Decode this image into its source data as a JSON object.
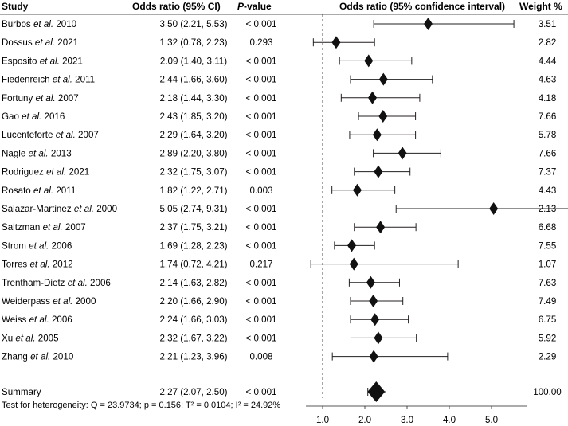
{
  "chart_data": {
    "type": "forest",
    "headers": {
      "study": "Study",
      "or": "Odds ratio (95% CI)",
      "p_value": "P-value",
      "p_value_italic": "P",
      "p_value_rest": "-value",
      "plot": "Odds ratio (95% confidence interval)",
      "weight": "Weight %"
    },
    "studies": [
      {
        "author": "Burbos",
        "etal": "et al.",
        "year": "2010",
        "or": 3.5,
        "lo": 2.21,
        "hi": 5.53,
        "or_text": "3.50 (2.21, 5.53)",
        "p": "< 0.001",
        "weight": "3.51"
      },
      {
        "author": "Dossus",
        "etal": "et al.",
        "year": "2021",
        "or": 1.32,
        "lo": 0.78,
        "hi": 2.23,
        "or_text": "1.32 (0.78, 2.23)",
        "p": "0.293",
        "weight": "2.82"
      },
      {
        "author": "Esposito",
        "etal": "et al.",
        "year": "2021",
        "or": 2.09,
        "lo": 1.4,
        "hi": 3.11,
        "or_text": "2.09 (1.40, 3.11)",
        "p": "< 0.001",
        "weight": "4.44"
      },
      {
        "author": "Fiedenreich",
        "etal": "et al.",
        "year": "2011",
        "or": 2.44,
        "lo": 1.66,
        "hi": 3.6,
        "or_text": "2.44 (1.66, 3.60)",
        "p": "< 0.001",
        "weight": "4.63"
      },
      {
        "author": "Fortuny",
        "etal": "et al.",
        "year": "2007",
        "or": 2.18,
        "lo": 1.44,
        "hi": 3.3,
        "or_text": "2.18 (1.44, 3.30)",
        "p": "< 0.001",
        "weight": "4.18"
      },
      {
        "author": "Gao",
        "etal": "et al.",
        "year": "2016",
        "or": 2.43,
        "lo": 1.85,
        "hi": 3.2,
        "or_text": "2.43 (1.85, 3.20)",
        "p": "< 0.001",
        "weight": "7.66"
      },
      {
        "author": "Lucenteforte",
        "etal": "et al.",
        "year": "2007",
        "or": 2.29,
        "lo": 1.64,
        "hi": 3.2,
        "or_text": "2.29 (1.64, 3.20)",
        "p": "< 0.001",
        "weight": "5.78"
      },
      {
        "author": "Nagle",
        "etal": "et al.",
        "year": "2013",
        "or": 2.89,
        "lo": 2.2,
        "hi": 3.8,
        "or_text": "2.89 (2.20, 3.80)",
        "p": "< 0.001",
        "weight": "7.66"
      },
      {
        "author": "Rodriguez",
        "etal": "et al.",
        "year": "2021",
        "or": 2.32,
        "lo": 1.75,
        "hi": 3.07,
        "or_text": "2.32 (1.75, 3.07)",
        "p": "< 0.001",
        "weight": "7.37"
      },
      {
        "author": "Rosato",
        "etal": "et al.",
        "year": "2011",
        "or": 1.82,
        "lo": 1.22,
        "hi": 2.71,
        "or_text": "1.82 (1.22, 2.71)",
        "p": "0.003",
        "weight": "4.43"
      },
      {
        "author": "Salazar-Martinez",
        "etal": "et al.",
        "year": "2000",
        "or": 5.05,
        "lo": 2.74,
        "hi": 9.31,
        "or_text": "5.05 (2.74, 9.31)",
        "p": "< 0.001",
        "weight": "2.13"
      },
      {
        "author": "Saltzman",
        "etal": "et al.",
        "year": "2007",
        "or": 2.37,
        "lo": 1.75,
        "hi": 3.21,
        "or_text": "2.37 (1.75, 3.21)",
        "p": "< 0.001",
        "weight": "6.68"
      },
      {
        "author": "Strom",
        "etal": "et al.",
        "year": "2006",
        "or": 1.69,
        "lo": 1.28,
        "hi": 2.23,
        "or_text": "1.69 (1.28, 2.23)",
        "p": "< 0.001",
        "weight": "7.55"
      },
      {
        "author": "Torres",
        "etal": "et al.",
        "year": "2012",
        "or": 1.74,
        "lo": 0.72,
        "hi": 4.21,
        "or_text": "1.74 (0.72, 4.21)",
        "p": "0.217",
        "weight": "1.07"
      },
      {
        "author": "Trentham-Dietz",
        "etal": "et al.",
        "year": "2006",
        "or": 2.14,
        "lo": 1.63,
        "hi": 2.82,
        "or_text": "2.14 (1.63, 2.82)",
        "p": "< 0.001",
        "weight": "7.63"
      },
      {
        "author": "Weiderpass",
        "etal": "et al.",
        "year": "2000",
        "or": 2.2,
        "lo": 1.66,
        "hi": 2.9,
        "or_text": "2.20 (1.66, 2.90)",
        "p": "< 0.001",
        "weight": "7.49"
      },
      {
        "author": "Weiss",
        "etal": "et al.",
        "year": "2006",
        "or": 2.24,
        "lo": 1.66,
        "hi": 3.03,
        "or_text": "2.24 (1.66, 3.03)",
        "p": "< 0.001",
        "weight": "6.75"
      },
      {
        "author": "Xu",
        "etal": "et al.",
        "year": "2005",
        "or": 2.32,
        "lo": 1.67,
        "hi": 3.22,
        "or_text": "2.32 (1.67, 3.22)",
        "p": "< 0.001",
        "weight": "5.92"
      },
      {
        "author": "Zhang",
        "etal": "et al.",
        "year": "2010",
        "or": 2.21,
        "lo": 1.23,
        "hi": 3.96,
        "or_text": "2.21 (1.23, 3.96)",
        "p": "0.008",
        "weight": "2.29"
      }
    ],
    "summary": {
      "label": "Summary",
      "or": 2.27,
      "lo": 2.07,
      "hi": 2.5,
      "or_text": "2.27 (2.07, 2.50)",
      "p": "< 0.001",
      "weight": "100.00"
    },
    "heterogeneity": "Test for heterogeneity: Q = 23.9734; p = 0.156; T² = 0.0104; I² = 24.92%",
    "xaxis": {
      "ticks": [
        1.0,
        2.0,
        3.0,
        4.0,
        5.0
      ],
      "tick_labels": [
        "1.0",
        "2.0",
        "3.0",
        "4.0",
        "5.0"
      ],
      "range": [
        0.55,
        5.9
      ],
      "reference_line": 1.0
    }
  }
}
